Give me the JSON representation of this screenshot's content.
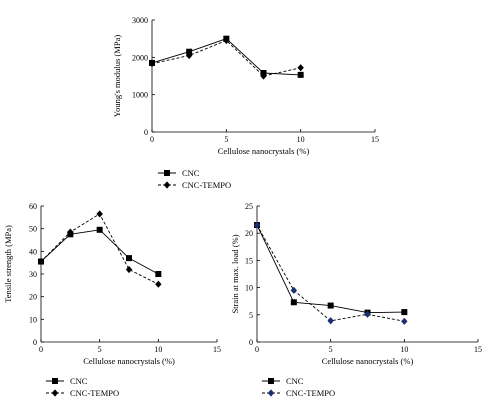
{
  "chart_data": [
    {
      "type": "line",
      "title": "",
      "xlabel": "Cellulose nanocrystals (%)",
      "ylabel": "Young's modulus (MPa)",
      "xlim": [
        0,
        15
      ],
      "ylim": [
        0,
        3000
      ],
      "x_ticks": [
        "0",
        "5",
        "10",
        "15"
      ],
      "y_ticks": [
        "0",
        "1000",
        "2000",
        "3000"
      ],
      "grid": false,
      "legend_position": "below",
      "series": [
        {
          "name": "CNC",
          "marker": "square",
          "line_style": "solid",
          "color": "#000000",
          "x": [
            0,
            2.5,
            5,
            7.5,
            10
          ],
          "y": [
            1850,
            2150,
            2500,
            1580,
            1530
          ]
        },
        {
          "name": "CNC-TEMPO",
          "marker": "diamond",
          "line_style": "dashed",
          "color": "#000000",
          "x": [
            0,
            2.5,
            5,
            7.5,
            10
          ],
          "y": [
            1830,
            2050,
            2450,
            1500,
            1720
          ]
        }
      ]
    },
    {
      "type": "line",
      "title": "",
      "xlabel": "Cellulose nanocrystals (%)",
      "ylabel": "Tensile strength (MPa)",
      "xlim": [
        0,
        15
      ],
      "ylim": [
        0,
        60
      ],
      "x_ticks": [
        "0",
        "5",
        "10",
        "15"
      ],
      "y_ticks": [
        "0",
        "10",
        "20",
        "30",
        "40",
        "50",
        "60"
      ],
      "grid": false,
      "legend_position": "below",
      "series": [
        {
          "name": "CNC",
          "marker": "square",
          "line_style": "solid",
          "color": "#000000",
          "x": [
            0,
            2.5,
            5,
            7.5,
            10
          ],
          "y": [
            35.5,
            47.5,
            49.5,
            37,
            30
          ]
        },
        {
          "name": "CNC-TEMPO",
          "marker": "diamond",
          "line_style": "dashed",
          "color": "#000000",
          "x": [
            0,
            2.5,
            5,
            7.5,
            10
          ],
          "y": [
            35.5,
            48.5,
            56.5,
            32,
            25.5
          ]
        }
      ]
    },
    {
      "type": "line",
      "title": "",
      "xlabel": "Cellulose nanocrystals (%)",
      "ylabel": "Strain at max. load (%)",
      "xlim": [
        0,
        15
      ],
      "ylim": [
        0,
        25
      ],
      "x_ticks": [
        "0",
        "5",
        "10",
        "15"
      ],
      "y_ticks": [
        "0",
        "5",
        "10",
        "15",
        "20",
        "25"
      ],
      "grid": false,
      "legend_position": "below",
      "series": [
        {
          "name": "CNC",
          "marker": "square",
          "line_style": "solid",
          "color": "#000000",
          "x": [
            0,
            2.5,
            5,
            7.5,
            10
          ],
          "y": [
            21.5,
            7.3,
            6.7,
            5.4,
            5.5
          ]
        },
        {
          "name": "CNC-TEMPO",
          "marker": "diamond",
          "line_style": "dashed",
          "color": "#1a2f6e",
          "x": [
            0,
            2.5,
            5,
            7.5,
            10
          ],
          "y": [
            21.5,
            9.5,
            3.9,
            5.1,
            3.8
          ]
        }
      ]
    }
  ]
}
